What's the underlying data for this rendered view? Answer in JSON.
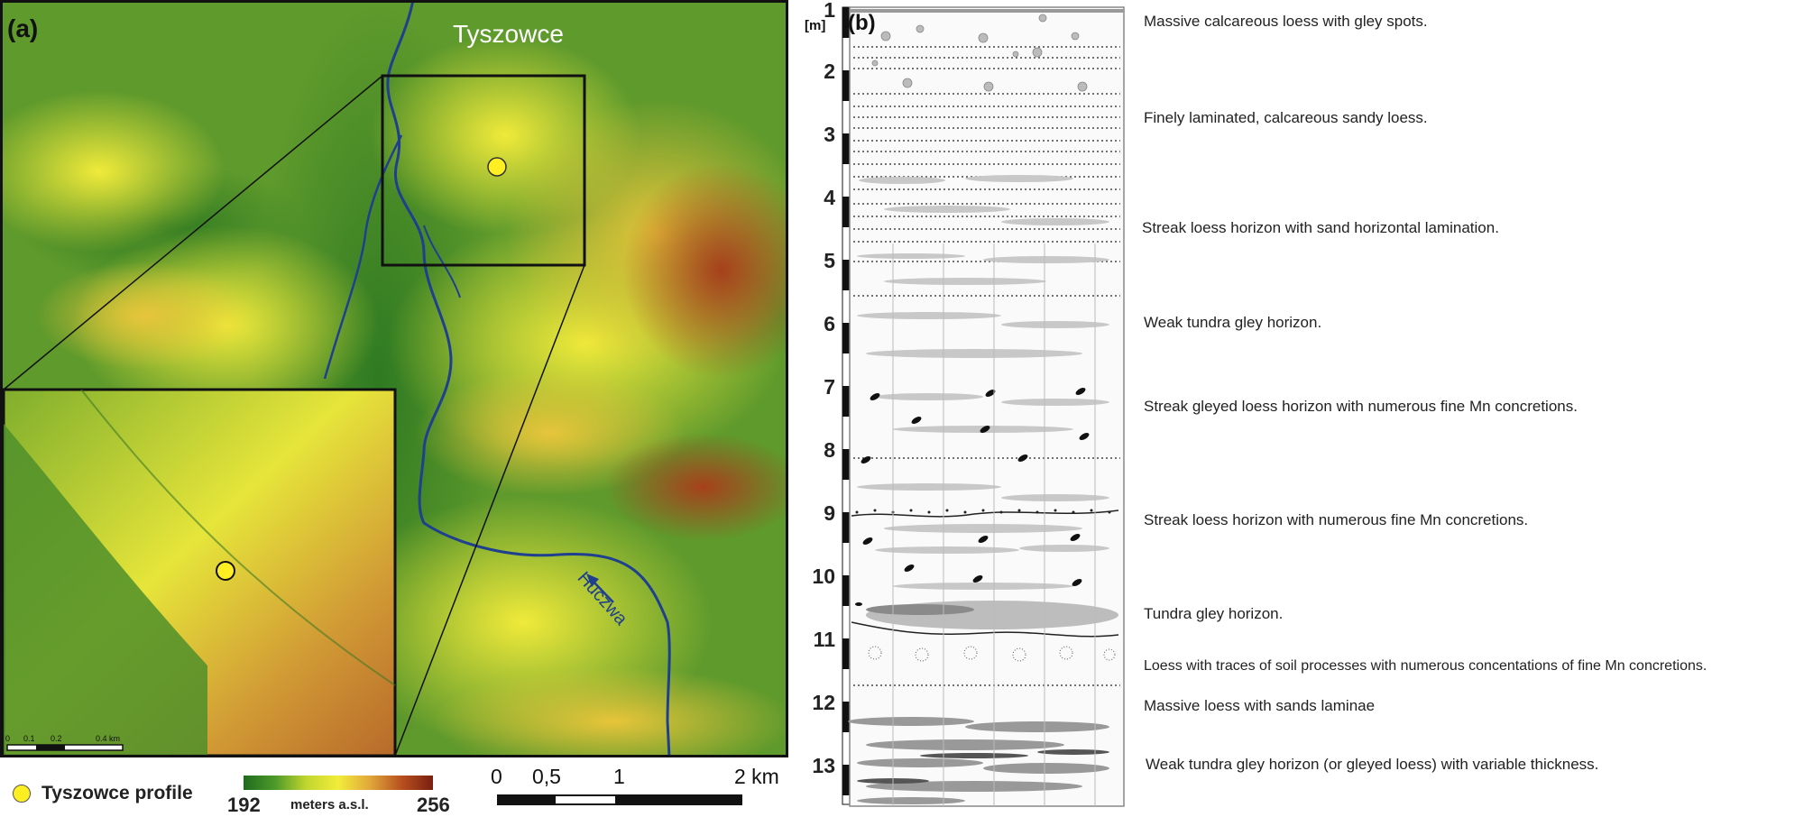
{
  "panel_a": {
    "label": "(a)",
    "town": "Tyszowce",
    "river": "Huczwa",
    "legend": {
      "profile_label": "Tyszowce profile",
      "min": "192",
      "max": "256",
      "unit": "meters a.s.l.",
      "ramp_colors": [
        "#1f6b1f",
        "#4d9a2a",
        "#c2d62e",
        "#f2ec3a",
        "#e0a83a",
        "#b8501f",
        "#7a1f10"
      ]
    },
    "scale_bar": {
      "ticks": [
        "0",
        "0,5",
        "1",
        "2 km"
      ]
    },
    "inset_scale": {
      "ticks": [
        "0",
        "0.1",
        "0.2",
        "0.4 km"
      ]
    }
  },
  "panel_b": {
    "label": "(b)",
    "unit": "[m]",
    "depth_ticks": [
      "1",
      "2",
      "3",
      "4",
      "5",
      "6",
      "7",
      "8",
      "9",
      "10",
      "11",
      "12",
      "13"
    ]
  },
  "layers": [
    "Massive calcareous loess with gley spots.",
    "Finely laminated, calcareous sandy loess.",
    "Streak loess horizon with sand horizontal lamination.",
    "Weak tundra gley horizon.",
    "Streak gleyed loess horizon with numerous fine Mn concretions.",
    "Streak loess horizon with numerous fine Mn concretions.",
    "Tundra gley horizon.",
    "Loess with traces of soil processes with numerous concentations of fine Mn concretions.",
    "Massive loess with sands laminae",
    "Weak tundra gley horizon (or gleyed loess) with variable thickness."
  ]
}
